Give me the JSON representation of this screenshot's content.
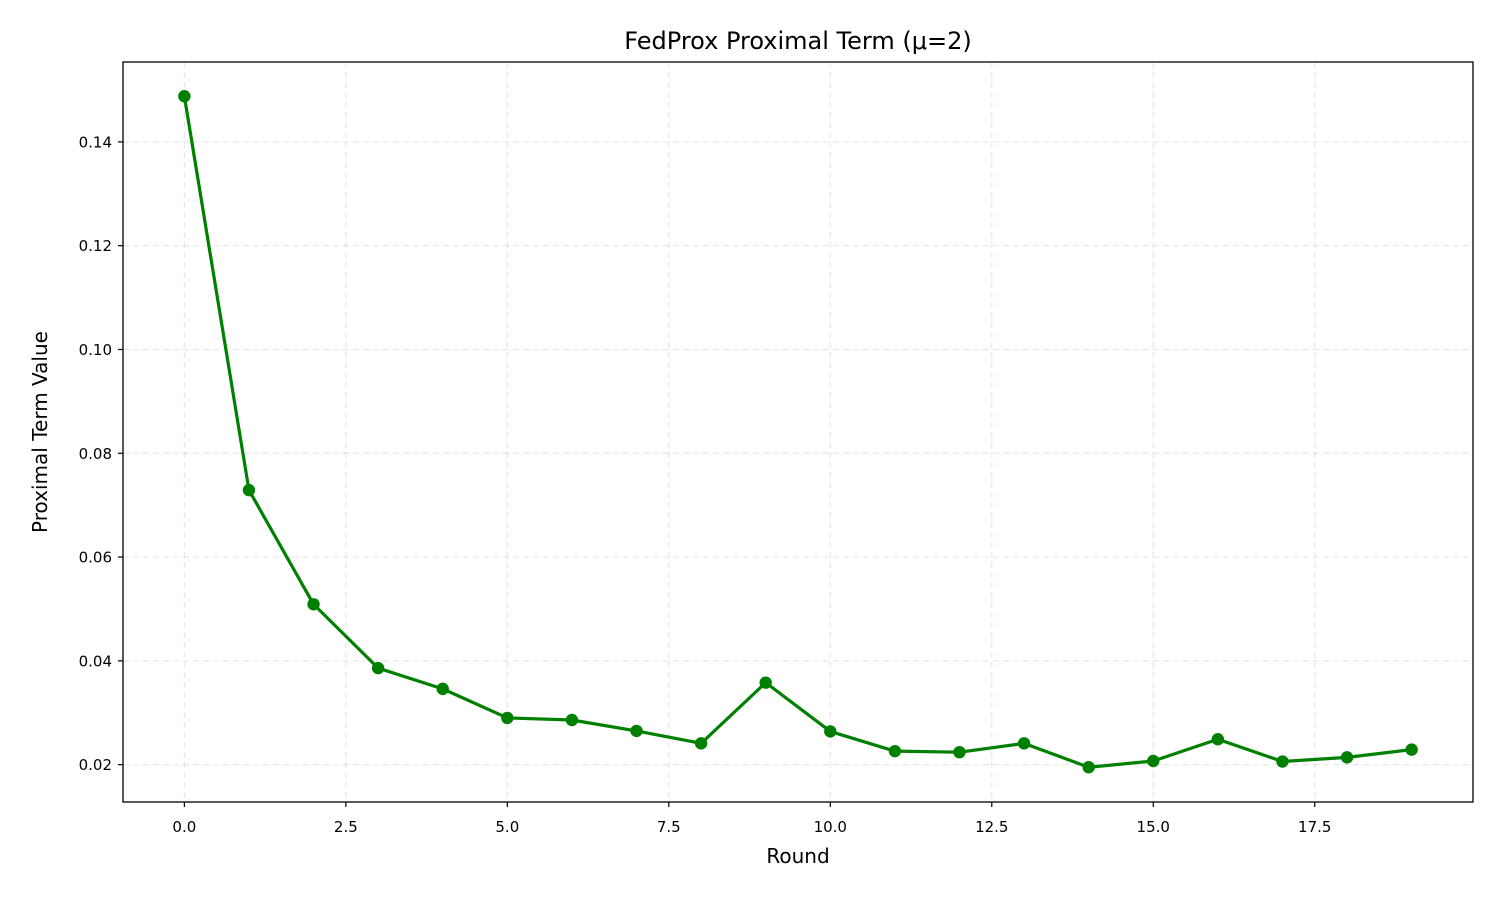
{
  "chart_data": {
    "type": "line",
    "title": "FedProx Proximal Term (μ=2)",
    "xlabel": "Round",
    "ylabel": "Proximal Term Value",
    "xlim": [
      -0.95,
      19.95
    ],
    "ylim": [
      0.0128,
      0.1554
    ],
    "xticks": [
      0.0,
      2.5,
      5.0,
      7.5,
      10.0,
      12.5,
      15.0,
      17.5
    ],
    "xtick_labels": [
      "0.0",
      "2.5",
      "5.0",
      "7.5",
      "10.0",
      "12.5",
      "15.0",
      "17.5"
    ],
    "yticks": [
      0.02,
      0.04,
      0.06,
      0.08,
      0.1,
      0.12,
      0.14
    ],
    "ytick_labels": [
      "0.02",
      "0.04",
      "0.06",
      "0.08",
      "0.10",
      "0.12",
      "0.14"
    ],
    "grid": true,
    "color": "#008000",
    "series": [
      {
        "x": [
          0,
          1,
          2,
          3,
          4,
          5,
          6,
          7,
          8,
          9,
          10,
          11,
          12,
          13,
          14,
          15,
          16,
          17,
          18,
          19
        ],
        "values": [
          0.1488,
          0.0729,
          0.0509,
          0.0386,
          0.0346,
          0.029,
          0.0286,
          0.0265,
          0.0241,
          0.0358,
          0.0264,
          0.0226,
          0.0224,
          0.0241,
          0.0195,
          0.0207,
          0.0249,
          0.0206,
          0.0214,
          0.0229
        ]
      }
    ]
  }
}
